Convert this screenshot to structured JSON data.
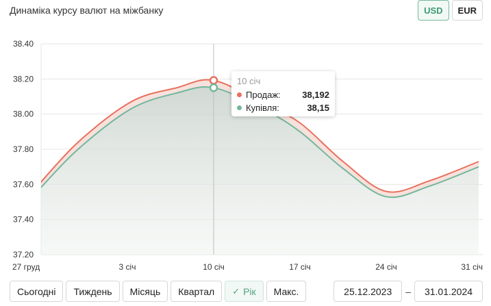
{
  "header": {
    "title": "Динаміка курсу валют на міжбанку"
  },
  "currency": {
    "options": [
      "USD",
      "EUR"
    ],
    "active": "USD"
  },
  "tooltip": {
    "date": "10 січ",
    "sell_label": "Продаж:",
    "sell_value": "38,192",
    "buy_label": "Купівля:",
    "buy_value": "38,15"
  },
  "periods": {
    "today": "Сьогодні",
    "week": "Тиждень",
    "month": "Місяць",
    "quarter": "Квартал",
    "year": "Рік",
    "max": "Макс.",
    "active": "year"
  },
  "date_range": {
    "from": "25.12.2023",
    "separator": "–",
    "to": "31.01.2024"
  },
  "colors": {
    "sell": "#e8705e",
    "buy": "#72b79c",
    "area": "#dfe5e1",
    "grid": "#e6e6e6",
    "crosshair": "#bdbdbd"
  },
  "chart_data": {
    "type": "line",
    "title": "Динаміка курсу валют на міжбанку",
    "x_ticks": [
      {
        "day": 0,
        "label": "27 груд"
      },
      {
        "day": 7,
        "label": "3 січ"
      },
      {
        "day": 14,
        "label": "10 січ"
      },
      {
        "day": 21,
        "label": "17 січ"
      },
      {
        "day": 28,
        "label": "24 січ"
      },
      {
        "day": 35,
        "label": "31 січ"
      }
    ],
    "y_ticks": [
      "37.20",
      "37.40",
      "37.60",
      "37.80",
      "38.00",
      "38.20",
      "38.40"
    ],
    "ylim": [
      37.2,
      38.4
    ],
    "grid": true,
    "highlight_day": 14,
    "series": [
      {
        "name": "Продаж",
        "x": [
          -0.3,
          3,
          7.3,
          11,
          14,
          18,
          21,
          24.5,
          28,
          31.5,
          35.5
        ],
        "values": [
          37.59,
          37.84,
          38.07,
          38.15,
          38.192,
          38.06,
          37.95,
          37.73,
          37.56,
          37.62,
          37.73
        ]
      },
      {
        "name": "Купівля",
        "x": [
          -0.3,
          3,
          7.3,
          11,
          14,
          18,
          21,
          24.5,
          28,
          31.5,
          35.5
        ],
        "values": [
          37.56,
          37.8,
          38.03,
          38.12,
          38.15,
          38.03,
          37.9,
          37.69,
          37.53,
          37.59,
          37.7
        ]
      }
    ]
  }
}
